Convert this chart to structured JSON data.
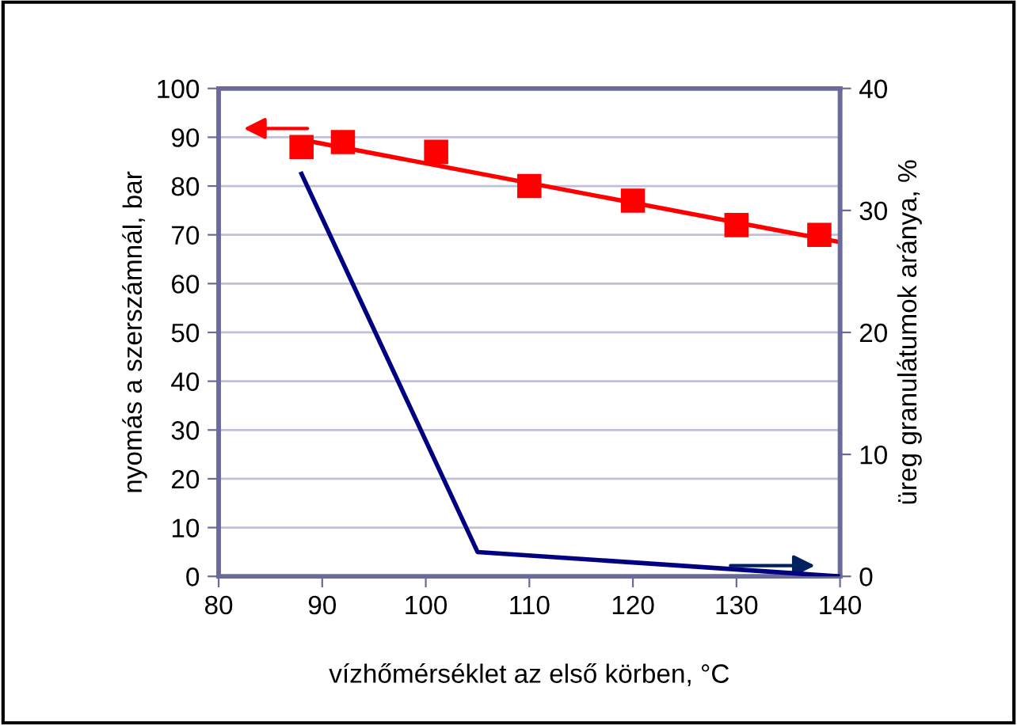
{
  "chart_data": {
    "type": "line",
    "xlabel": "vízhőmérséklet az első körben, °C",
    "ylabel": "nyomás a szerszámnál, bar",
    "y2label": "üreg granulátumok aránya, %",
    "series": [
      {
        "type": "scatter",
        "color": "#ff0000",
        "marker": "square",
        "x": [
          88,
          92,
          101,
          110,
          120,
          130,
          138
        ],
        "values": [
          88,
          89,
          87,
          80,
          77,
          72,
          70
        ]
      },
      {
        "color": "#ff0000",
        "marker": "none",
        "x": [
          88,
          140
        ],
        "values": [
          89.5,
          68.5
        ]
      },
      {
        "color": "#000080",
        "marker": "none",
        "axis": "y2",
        "x": [
          88,
          105,
          140
        ],
        "values": [
          33,
          2,
          0
        ]
      }
    ],
    "xlim": [
      80,
      140
    ],
    "xticks": [
      80,
      90,
      100,
      110,
      120,
      130,
      140
    ],
    "ylim": [
      0,
      100
    ],
    "yticks": [
      0,
      10,
      20,
      30,
      40,
      50,
      60,
      70,
      80,
      90,
      100
    ],
    "y2lim": [
      0,
      40
    ],
    "y2ticks": [
      0,
      10,
      20,
      30,
      40
    ],
    "grid": "y",
    "legend": false
  }
}
